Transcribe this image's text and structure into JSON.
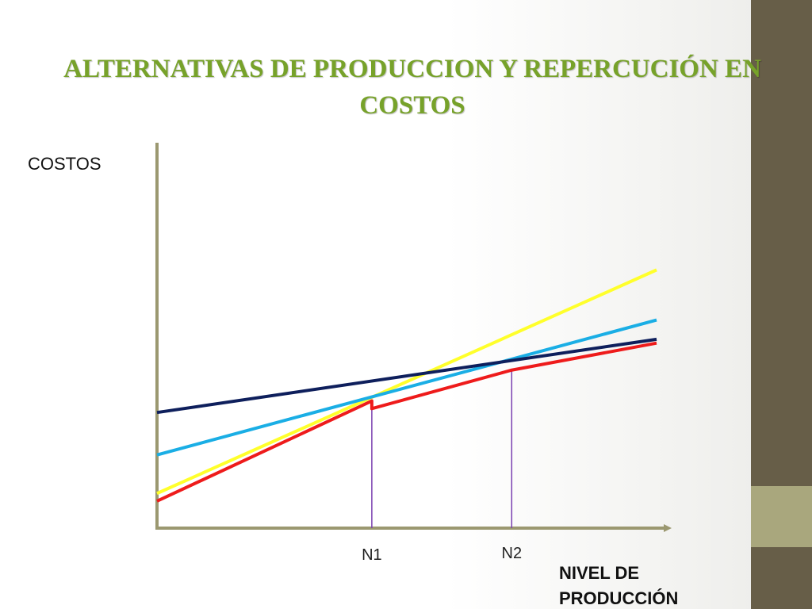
{
  "title": "ALTERNATIVAS DE PRODUCCION Y REPERCUCIÓN EN COSTOS",
  "colors": {
    "title": "#77a22a",
    "axis": "#9b9870",
    "sidebar": "#675e48",
    "sidebar_accent": "#a9a77d",
    "guide": "#7a3fb0"
  },
  "chart_data": {
    "type": "line",
    "title": "ALTERNATIVAS DE PRODUCCION Y REPERCUCIÓN EN COSTOS",
    "ylabel": "COSTOS",
    "xlabel_lines": [
      "NIVEL DE",
      "PRODUCCIÓN"
    ],
    "xlim": [
      0,
      10
    ],
    "ylim": [
      0,
      10
    ],
    "grid": false,
    "legend": "none",
    "x_ticks": [
      {
        "x": 4.3,
        "label": "N1"
      },
      {
        "x": 7.1,
        "label": "N2"
      }
    ],
    "series": [
      {
        "color": "#ffff2b",
        "x": [
          0,
          10
        ],
        "y": [
          0.9,
          6.7
        ]
      },
      {
        "color": "#1aaee5",
        "x": [
          0,
          10
        ],
        "y": [
          1.9,
          5.4
        ]
      },
      {
        "color": "#0e1f5c",
        "x": [
          0,
          10
        ],
        "y": [
          3.0,
          4.9
        ]
      },
      {
        "color": "#ee1b1b",
        "x": [
          0,
          4.3,
          4.3,
          7.1,
          10
        ],
        "y": [
          0.7,
          3.3,
          3.1,
          4.1,
          4.8
        ]
      }
    ]
  }
}
